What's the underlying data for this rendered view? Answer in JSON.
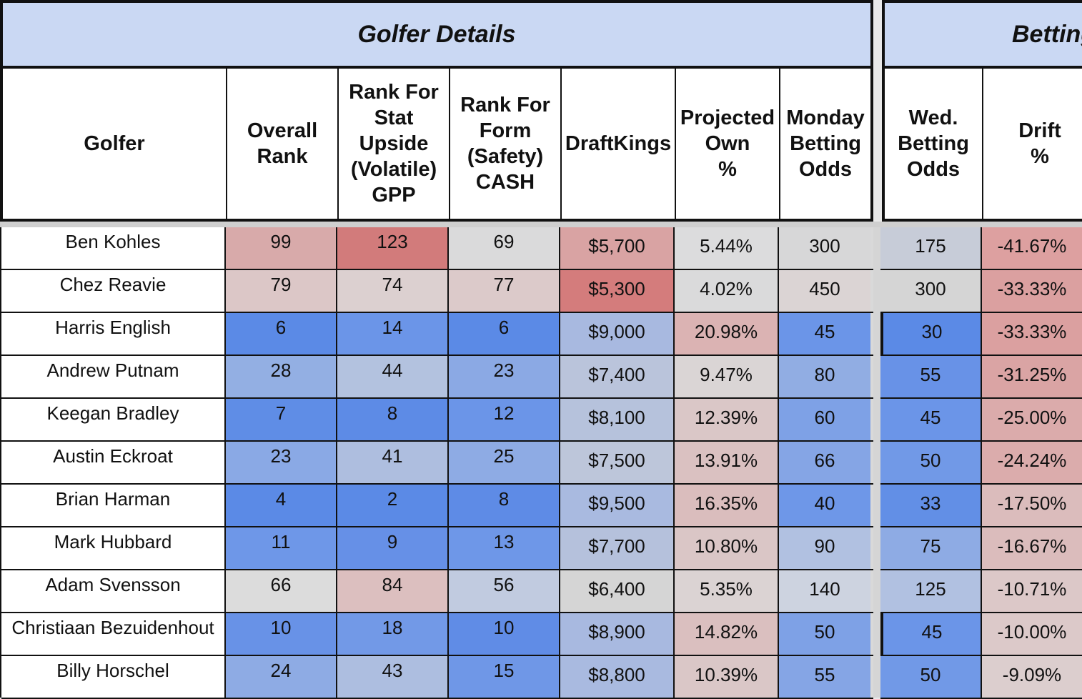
{
  "sections": {
    "golfer_details": "Golfer Details",
    "betting": "Betting"
  },
  "headers": {
    "golfer": "Golfer",
    "overall_rank": "Overall\nRank",
    "stat_upside": "Rank For\nStat\nUpside\n(Volatile)\nGPP",
    "form_safety": "Rank For\nForm\n(Safety)\nCASH",
    "draftkings": "DraftKings",
    "projected_own": "Projected\nOwn\n%",
    "monday_odds": "Monday\nBetting\nOdds",
    "wed_odds": "Wed.\nBetting\nOdds",
    "drift": "Drift\n%"
  },
  "rows": [
    {
      "golfer": "Ben Kohles",
      "overall": "99",
      "upside": "123",
      "form": "69",
      "dk": "$5,700",
      "own": "5.44%",
      "monday": "300",
      "wed": "175",
      "drift": "-41.67%"
    },
    {
      "golfer": "Chez Reavie",
      "overall": "79",
      "upside": "74",
      "form": "77",
      "dk": "$5,300",
      "own": "4.02%",
      "monday": "450",
      "wed": "300",
      "drift": "-33.33%"
    },
    {
      "golfer": "Harris English",
      "overall": "6",
      "upside": "14",
      "form": "6",
      "dk": "$9,000",
      "own": "20.98%",
      "monday": "45",
      "wed": "30",
      "drift": "-33.33%"
    },
    {
      "golfer": "Andrew Putnam",
      "overall": "28",
      "upside": "44",
      "form": "23",
      "dk": "$7,400",
      "own": "9.47%",
      "monday": "80",
      "wed": "55",
      "drift": "-31.25%"
    },
    {
      "golfer": "Keegan Bradley",
      "overall": "7",
      "upside": "8",
      "form": "12",
      "dk": "$8,100",
      "own": "12.39%",
      "monday": "60",
      "wed": "45",
      "drift": "-25.00%"
    },
    {
      "golfer": "Austin Eckroat",
      "overall": "23",
      "upside": "41",
      "form": "25",
      "dk": "$7,500",
      "own": "13.91%",
      "monday": "66",
      "wed": "50",
      "drift": "-24.24%"
    },
    {
      "golfer": "Brian Harman",
      "overall": "4",
      "upside": "2",
      "form": "8",
      "dk": "$9,500",
      "own": "16.35%",
      "monday": "40",
      "wed": "33",
      "drift": "-17.50%"
    },
    {
      "golfer": "Mark Hubbard",
      "overall": "11",
      "upside": "9",
      "form": "13",
      "dk": "$7,700",
      "own": "10.80%",
      "monday": "90",
      "wed": "75",
      "drift": "-16.67%"
    },
    {
      "golfer": "Adam Svensson",
      "overall": "66",
      "upside": "84",
      "form": "56",
      "dk": "$6,400",
      "own": "5.35%",
      "monday": "140",
      "wed": "125",
      "drift": "-10.71%"
    },
    {
      "golfer": "Christiaan Bezuidenhout",
      "overall": "10",
      "upside": "18",
      "form": "10",
      "dk": "$8,900",
      "own": "14.82%",
      "monday": "50",
      "wed": "45",
      "drift": "-10.00%"
    },
    {
      "golfer": "Billy Horschel",
      "overall": "24",
      "upside": "43",
      "form": "15",
      "dk": "$8,800",
      "own": "10.39%",
      "monday": "55",
      "wed": "50",
      "drift": "-9.09%"
    }
  ],
  "colors": {
    "header_bg": "#cad8f3",
    "rows": [
      [
        "#d8aaaa",
        "#d27b7b",
        "#dadadb",
        "#d9a3a3",
        "#dcdcdd",
        "#d7d7d8",
        "#c7ccd8",
        "#dda0a0"
      ],
      [
        "#dcc7c7",
        "#dcd0d0",
        "#dccaca",
        "#d47c7c",
        "#dadadb",
        "#dbd4d4",
        "#d5d5d5",
        "#dba0a0"
      ],
      [
        "#5b8ae6",
        "#6b95e8",
        "#5b8ae6",
        "#a8b9e0",
        "#dbb3b3",
        "#6b95e8",
        "#5b8ae6",
        "#dba0a0"
      ],
      [
        "#93afe3",
        "#b3c2df",
        "#8ba9e4",
        "#bac4db",
        "#dad5d5",
        "#91ade3",
        "#6892e7",
        "#daa4a4"
      ],
      [
        "#5f8de6",
        "#5d8be6",
        "#6b95e8",
        "#b6c2dc",
        "#dac7c7",
        "#7ea1e6",
        "#6b95e8",
        "#dbabab"
      ],
      [
        "#8aa9e5",
        "#aebedf",
        "#8eabe4",
        "#bdc6da",
        "#dac1c1",
        "#85a5e5",
        "#7199e7",
        "#dbacac"
      ],
      [
        "#5b8ae6",
        "#5b8ae6",
        "#5e8be6",
        "#a9bae0",
        "#dabdbd",
        "#6e97e8",
        "#628fe6",
        "#dbbcbc"
      ],
      [
        "#6e97e8",
        "#6690e7",
        "#6e97e8",
        "#b5c1dc",
        "#dac6c6",
        "#b1c1e1",
        "#8eabe4",
        "#dbbcbc"
      ],
      [
        "#dcdcdc",
        "#dcbfbf",
        "#c1cbe0",
        "#d5d5d5",
        "#dbd3d3",
        "#cdd3e0",
        "#b1c1e1",
        "#dcc8c8"
      ],
      [
        "#6892e7",
        "#7299e7",
        "#608ce6",
        "#a8b9e0",
        "#dabfbf",
        "#7ea1e6",
        "#6b95e8",
        "#dcc9c9"
      ],
      [
        "#8eabe4",
        "#adbee0",
        "#6f97e7",
        "#a9bae0",
        "#dac7c7",
        "#85a5e5",
        "#7199e7",
        "#dccece"
      ]
    ]
  }
}
